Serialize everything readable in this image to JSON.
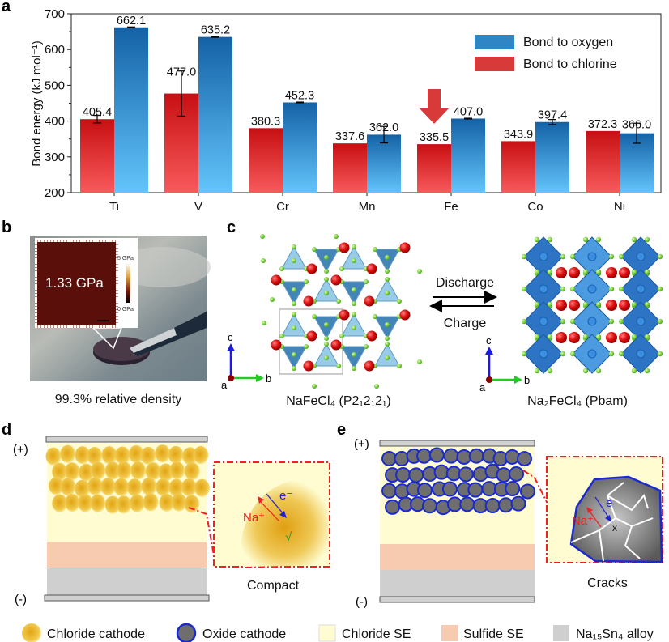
{
  "panels": {
    "a": "a",
    "b": "b",
    "c": "c",
    "d": "d",
    "e": "e"
  },
  "chart_data": {
    "type": "bar",
    "ylabel": "Bond energy (kJ mol⁻¹)",
    "xlabel": "",
    "ylim": [
      200,
      700
    ],
    "yticks": [
      "200",
      "300",
      "400",
      "500",
      "600",
      "700"
    ],
    "categories": [
      "Ti",
      "V",
      "Cr",
      "Mn",
      "Fe",
      "Co",
      "Ni"
    ],
    "legend_position": "top-right",
    "series": [
      {
        "name": "Bond to chlorine",
        "color": "#d42424",
        "values": [
          405.4,
          477.0,
          380.3,
          337.6,
          335.5,
          343.9,
          372.3
        ],
        "labels": [
          "405.4",
          "477.0",
          "380.3",
          "337.6",
          "335.5",
          "343.9",
          "372.3"
        ],
        "errors": [
          10.5,
          63,
          0,
          0,
          0,
          0,
          0
        ]
      },
      {
        "name": "Bond to oxygen",
        "color": "#2a7fc0",
        "values": [
          662.1,
          635.2,
          452.3,
          362.0,
          407.0,
          397.4,
          366.0
        ],
        "labels": [
          "662.1",
          "635.2",
          "452.3",
          "362.0",
          "407.0",
          "397.4",
          "366.0"
        ],
        "errors": [
          1,
          1,
          1,
          23,
          1,
          7,
          28
        ]
      }
    ],
    "highlight": "Fe"
  },
  "panel_b": {
    "inset_value": "1.33 GPa",
    "scale_max": "5 GPa",
    "scale_min": "0 GPa",
    "caption": "99.3% relative density"
  },
  "panel_c": {
    "left_caption": "NaFeCl₄ (P2₁2₁2₁)",
    "right_caption": "Na₂FeCl₄ (Pbam)",
    "discharge": "Discharge",
    "charge": "Charge",
    "axis_a": "a",
    "axis_b": "b",
    "axis_c": "c"
  },
  "panel_d": {
    "plus": "(+)",
    "minus": "(-)",
    "caption": "Compact",
    "na": "Na⁺",
    "e": "e⁻",
    "check": "√"
  },
  "panel_e": {
    "plus": "(+)",
    "minus": "(-)",
    "caption": "Cracks",
    "na": "Na⁺",
    "e": "e",
    "cross": "x"
  },
  "legend": [
    {
      "label": "Chloride cathode",
      "color": "#e8b420"
    },
    {
      "label": "Oxide cathode",
      "color": "#6e6e6e"
    },
    {
      "label": "Chloride SE",
      "color": "#fefcd0"
    },
    {
      "label": "Sulfide SE",
      "color": "#f6cbb0"
    },
    {
      "label": "Na₁₅Sn₄ alloy",
      "color": "#cfcfcf"
    }
  ]
}
